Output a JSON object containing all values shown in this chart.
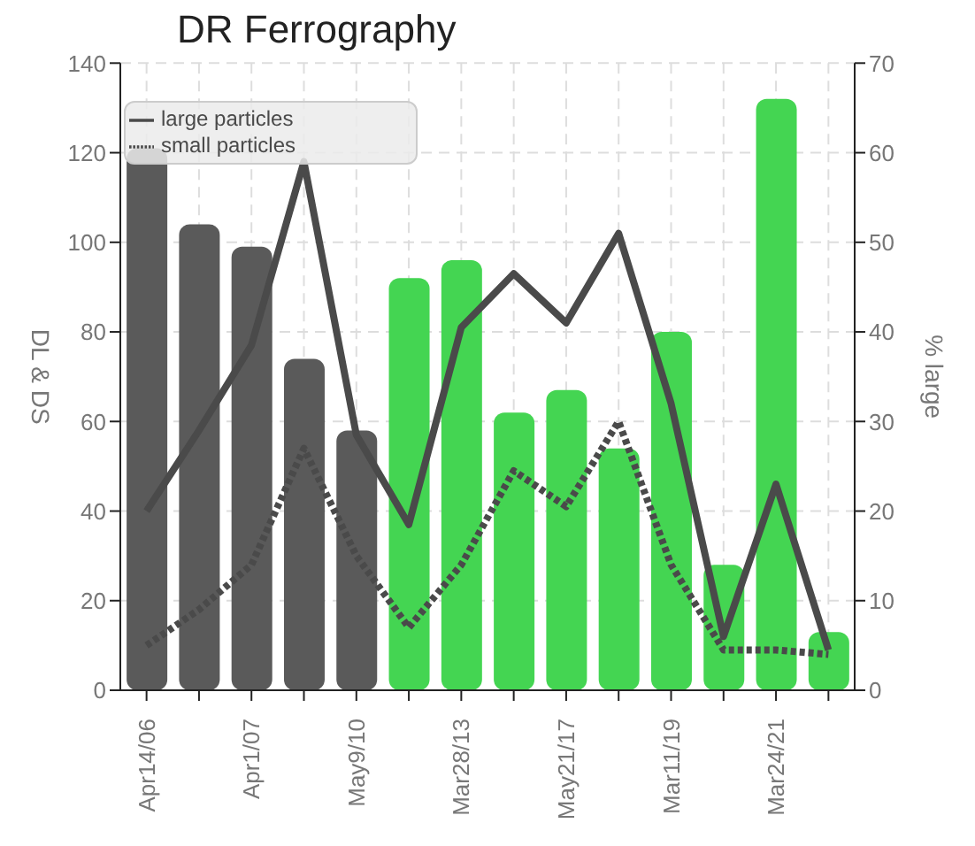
{
  "chart_data": {
    "type": "bar",
    "title": "DR Ferrography",
    "ylabel": "DL & DS",
    "y2label": "% large",
    "categories": [
      "Apr14/06",
      null,
      "Apr1/07",
      null,
      "May9/10",
      null,
      "Mar28/13",
      null,
      "May21/17",
      null,
      "Mar11/19",
      null,
      "Mar24/21",
      null
    ],
    "series": [
      {
        "values": [
          121,
          104,
          99,
          74,
          58,
          92,
          96,
          62,
          67,
          54,
          80,
          28,
          132,
          13
        ],
        "colors": [
          "#5a5a5a",
          "#5a5a5a",
          "#5a5a5a",
          "#5a5a5a",
          "#5a5a5a",
          "#44d552",
          "#44d552",
          "#44d552",
          "#44d552",
          "#44d552",
          "#44d552",
          "#44d552",
          "#44d552",
          "#44d552"
        ]
      },
      {
        "type": "line",
        "name": "large particles",
        "color": "#4a4a4a",
        "line_style": "solid",
        "values": [
          40,
          58,
          77,
          118,
          57,
          37,
          81,
          93,
          82,
          102,
          64,
          12,
          46,
          9
        ]
      },
      {
        "type": "line",
        "name": "small particles",
        "color": "#4a4a4a",
        "line_style": "dotted",
        "values": [
          10,
          18,
          28,
          54,
          30,
          14,
          28,
          49,
          41,
          60,
          28,
          9,
          9,
          8
        ]
      }
    ],
    "ylim": [
      0,
      140
    ],
    "yticks": [
      0,
      20,
      40,
      60,
      80,
      100,
      120,
      140
    ],
    "y2lim": [
      0,
      70
    ],
    "y2ticks": [
      0,
      10,
      20,
      30,
      40,
      50,
      60,
      70
    ],
    "grid": true,
    "legend": "top left",
    "marker": "none"
  }
}
